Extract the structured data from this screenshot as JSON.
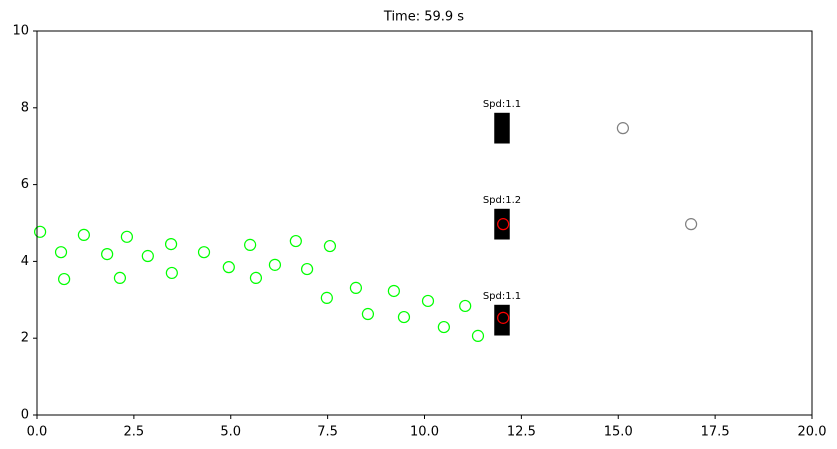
{
  "chart_data": {
    "type": "scatter",
    "title": "Time: 59.9 s",
    "xlim": [
      0,
      20
    ],
    "ylim": [
      0,
      10
    ],
    "xticks": [
      {
        "value": 0,
        "label": "0.0"
      },
      {
        "value": 2.5,
        "label": "2.5"
      },
      {
        "value": 5,
        "label": "5.0"
      },
      {
        "value": 7.5,
        "label": "7.5"
      },
      {
        "value": 10,
        "label": "10.0"
      },
      {
        "value": 12.5,
        "label": "12.5"
      },
      {
        "value": 15,
        "label": "15.0"
      },
      {
        "value": 17.5,
        "label": "17.5"
      },
      {
        "value": 20,
        "label": "20.0"
      }
    ],
    "yticks": [
      0,
      2,
      4,
      6,
      8,
      10
    ],
    "grid": false,
    "series": [
      {
        "color": "#00ff00",
        "x": [
          0.08,
          0.62,
          0.7,
          1.21,
          1.81,
          2.14,
          2.32,
          2.86,
          3.46,
          3.48,
          4.31,
          4.95,
          5.5,
          5.65,
          6.14,
          6.68,
          6.97,
          7.56,
          7.48,
          8.23,
          8.54,
          9.21,
          9.47,
          10.09,
          10.5,
          11.05,
          11.38
        ],
        "values": [
          4.77,
          4.24,
          3.54,
          4.69,
          4.19,
          3.57,
          4.64,
          4.14,
          4.45,
          3.7,
          4.24,
          3.85,
          4.43,
          3.57,
          3.91,
          4.53,
          3.8,
          4.4,
          3.05,
          3.31,
          2.63,
          3.23,
          2.55,
          2.97,
          2.29,
          2.84,
          2.06
        ]
      },
      {
        "color": "#808080",
        "x": [
          15.12,
          16.88
        ],
        "values": [
          7.47,
          4.97
        ]
      },
      {
        "color": "#ff0000",
        "x": [
          12.03,
          12.03
        ],
        "values": [
          4.97,
          2.53
        ]
      }
    ],
    "boxes": [
      {
        "x": 12.0,
        "y": 7.47,
        "width": 0.4,
        "height": 0.8,
        "label": "Spd:1.1"
      },
      {
        "x": 12.0,
        "y": 4.97,
        "width": 0.4,
        "height": 0.8,
        "label": "Spd:1.2"
      },
      {
        "x": 12.0,
        "y": 2.47,
        "width": 0.4,
        "height": 0.8,
        "label": "Spd:1.1"
      }
    ],
    "box_color": "#000000"
  }
}
